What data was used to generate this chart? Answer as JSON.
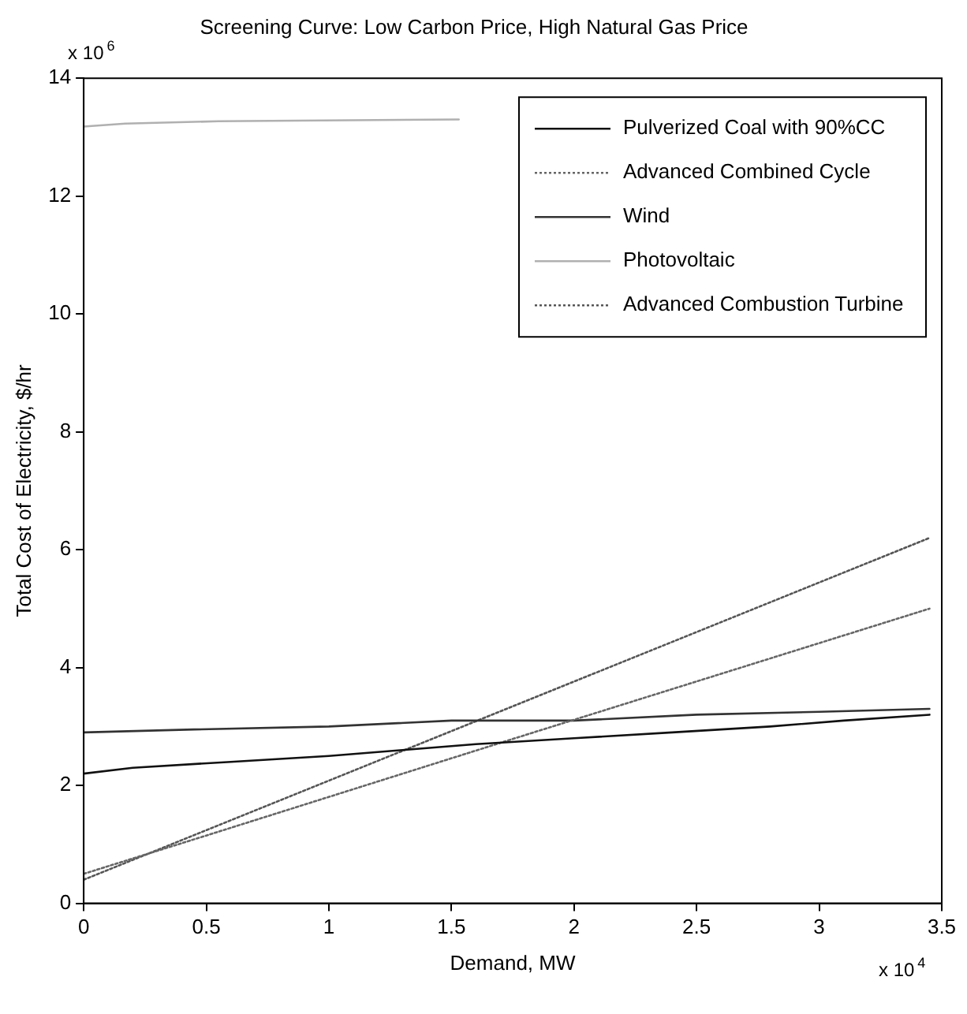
{
  "chart_data": {
    "type": "line",
    "title": "Screening Curve: Low Carbon Price, High Natural Gas Price",
    "xlabel": "Demand, MW",
    "ylabel": "Total Cost of Electricity, $/hr",
    "annotations": [
      "x 10$^{6}$",
      "x 10$^{4}$"
    ],
    "xlim": [
      0,
      3.5
    ],
    "ylim": [
      0,
      14
    ],
    "xticks": [
      0,
      0.5,
      1,
      1.5,
      2,
      2.5,
      3,
      3.5
    ],
    "yticks": [
      0,
      2,
      4,
      6,
      8,
      10,
      12,
      14
    ],
    "grid": false,
    "legend": "top right",
    "marker": "none",
    "series": [
      {
        "name": "Pulverized Coal with 90%CC",
        "color": "#111111",
        "line_style": "solid",
        "x": [
          0,
          0.2,
          0.6,
          1,
          1.3,
          1.6,
          2,
          2.4,
          2.8,
          3.1,
          3.45
        ],
        "values": [
          2.2,
          2.3,
          2.4,
          2.5,
          2.6,
          2.7,
          2.8,
          2.9,
          3.0,
          3.1,
          3.2
        ]
      },
      {
        "name": "Advanced Combined Cycle",
        "color": "#666666",
        "line_style": "dotted",
        "x": [
          0,
          0.5,
          1.82,
          3.45
        ],
        "values": [
          0.5,
          1.15,
          2.88,
          5.0
        ]
      },
      {
        "name": "Wind",
        "color": "#333333",
        "line_style": "solid",
        "x": [
          0,
          0.45,
          1,
          1.5,
          2,
          2.5,
          3,
          3.45
        ],
        "values": [
          2.9,
          2.95,
          3.0,
          3.1,
          3.1,
          3.2,
          3.25,
          3.3
        ]
      },
      {
        "name": "Photovoltaic",
        "color": "#b0b0b0",
        "line_style": "solid",
        "x": [
          0,
          0.17,
          0.55,
          1.53
        ],
        "values": [
          13.18,
          13.23,
          13.27,
          13.3
        ]
      },
      {
        "name": "Advanced Combustion Turbine",
        "color": "#555555",
        "line_style": "dotted",
        "x": [
          0,
          0.5,
          1.82,
          3.45
        ],
        "values": [
          0.4,
          1.24,
          3.46,
          6.2
        ]
      }
    ]
  }
}
